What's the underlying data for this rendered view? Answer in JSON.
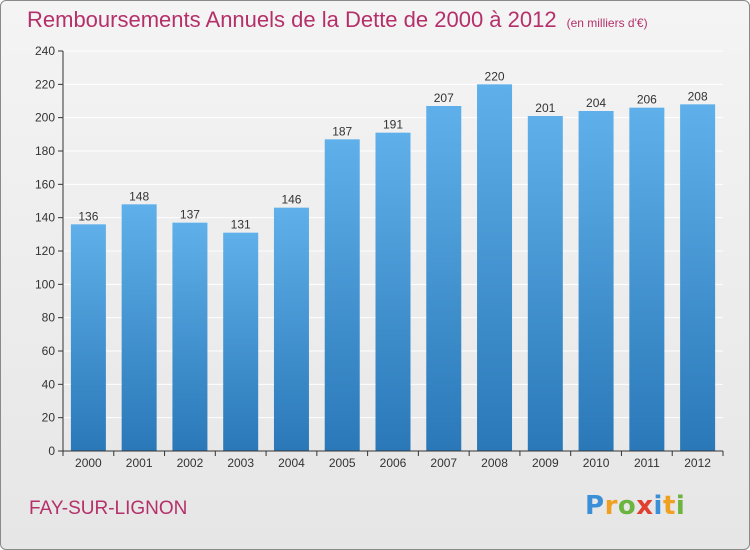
{
  "title": "Remboursements Annuels de la Dette de 2000 à 2012",
  "unit_note": "(en milliers d'€)",
  "city": "FAY-SUR-LIGNON",
  "logo": {
    "letters": [
      {
        "ch": "P",
        "color": "#3a8fd6"
      },
      {
        "ch": "r",
        "color": "#f0a020"
      },
      {
        "ch": "o",
        "color": "#6db33f"
      },
      {
        "ch": "x",
        "color": "#e04030"
      },
      {
        "ch": "i",
        "color": "#3a8fd6"
      },
      {
        "ch": "t",
        "color": "#f0a020"
      },
      {
        "ch": "i",
        "color": "#6db33f"
      }
    ]
  },
  "colors": {
    "title": "#b5306a",
    "bar_top": "#5fb0ea",
    "bar_bottom": "#2a78b8",
    "grid": "#ffffff",
    "axis": "#333333"
  },
  "chart_data": {
    "type": "bar",
    "categories": [
      "2000",
      "2001",
      "2002",
      "2003",
      "2004",
      "2005",
      "2006",
      "2007",
      "2008",
      "2009",
      "2010",
      "2011",
      "2012"
    ],
    "values": [
      136,
      148,
      137,
      131,
      146,
      187,
      191,
      207,
      220,
      201,
      204,
      206,
      208
    ],
    "ylim": [
      0,
      240
    ],
    "yticks": [
      0,
      20,
      40,
      60,
      80,
      100,
      120,
      140,
      160,
      180,
      200,
      220,
      240
    ],
    "grid": true,
    "data_labels": true
  }
}
